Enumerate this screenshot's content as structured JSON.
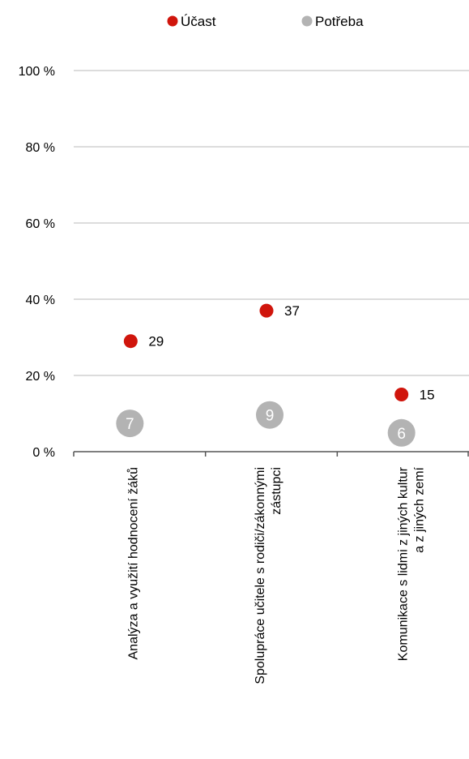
{
  "chart_data": {
    "type": "scatter",
    "categories": [
      [
        "Analýza a využití hodnocení žáků"
      ],
      [
        "Spolupráce učitele s rodiči/zákonnými",
        "zástupci"
      ],
      [
        "Komunikace s lidmi z jiných kultur",
        "a z jiných zemí"
      ]
    ],
    "series": [
      {
        "name": "Účast",
        "values": [
          29,
          37,
          15
        ],
        "color": "#d0150c"
      },
      {
        "name": "Potřeba",
        "values": [
          7,
          9,
          6
        ],
        "color": "#b3b3b3"
      }
    ],
    "y_ticks": [
      "0 %",
      "20 %",
      "40 %",
      "60 %",
      "80 %",
      "100 %"
    ],
    "ylim": [
      0,
      100
    ],
    "grid": true,
    "legend": "top-center"
  }
}
